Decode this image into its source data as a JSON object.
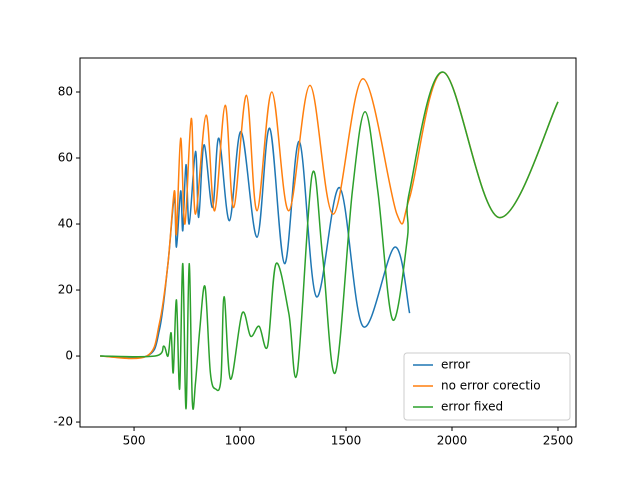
{
  "chart_data": {
    "type": "line",
    "xlim": [
      245,
      2585
    ],
    "ylim": [
      -21.5,
      90.3
    ],
    "xticks": [
      500,
      1000,
      1500,
      2000,
      2500
    ],
    "yticks": [
      -20,
      0,
      20,
      40,
      60,
      80
    ],
    "legend": "lower right",
    "series": [
      {
        "name": "error",
        "color": "#1f77b4",
        "x": [
          340,
          560,
          620,
          660,
          690,
          700,
          720,
          730,
          745,
          760,
          790,
          805,
          830,
          870,
          900,
          950,
          1005,
          1080,
          1140,
          1210,
          1280,
          1360,
          1470,
          1580,
          1730,
          1800
        ],
        "values": [
          0,
          0,
          8,
          28,
          48,
          33,
          50,
          38,
          58,
          40,
          62,
          42,
          64,
          45,
          66,
          41,
          68,
          36,
          69,
          28,
          65,
          18,
          51,
          9,
          33,
          13
        ]
      },
      {
        "name": "no error corectio",
        "color": "#ff7f0e",
        "x": [
          340,
          560,
          620,
          660,
          690,
          700,
          720,
          740,
          770,
          790,
          840,
          880,
          930,
          970,
          1030,
          1080,
          1150,
          1230,
          1330,
          1440,
          1580,
          1740,
          1800,
          1960,
          2220,
          2500
        ],
        "values": [
          0,
          0,
          10,
          28,
          50,
          37,
          66,
          40,
          72,
          43,
          73,
          44,
          76,
          45,
          79,
          44,
          80,
          44,
          82,
          43,
          84,
          43,
          48,
          86,
          42,
          77
        ]
      },
      {
        "name": "error fixed",
        "color": "#2ca02c",
        "x": [
          340,
          600,
          640,
          660,
          675,
          685,
          700,
          715,
          730,
          745,
          760,
          775,
          790,
          810,
          835,
          860,
          885,
          910,
          925,
          955,
          1010,
          1050,
          1090,
          1130,
          1170,
          1230,
          1270,
          1340,
          1390,
          1450,
          1530,
          1590,
          1650,
          1720,
          1790,
          1800,
          1960,
          2220,
          2500
        ],
        "values": [
          0,
          0,
          3,
          0,
          7,
          -5,
          17,
          -10,
          28,
          -16,
          28,
          -14,
          -8,
          8,
          21,
          -5,
          -10,
          -7,
          18,
          -7,
          13,
          6,
          9,
          3,
          28,
          13,
          -5,
          55,
          30,
          -5,
          50,
          74,
          50,
          11,
          36,
          50,
          86,
          42,
          77
        ]
      }
    ]
  }
}
